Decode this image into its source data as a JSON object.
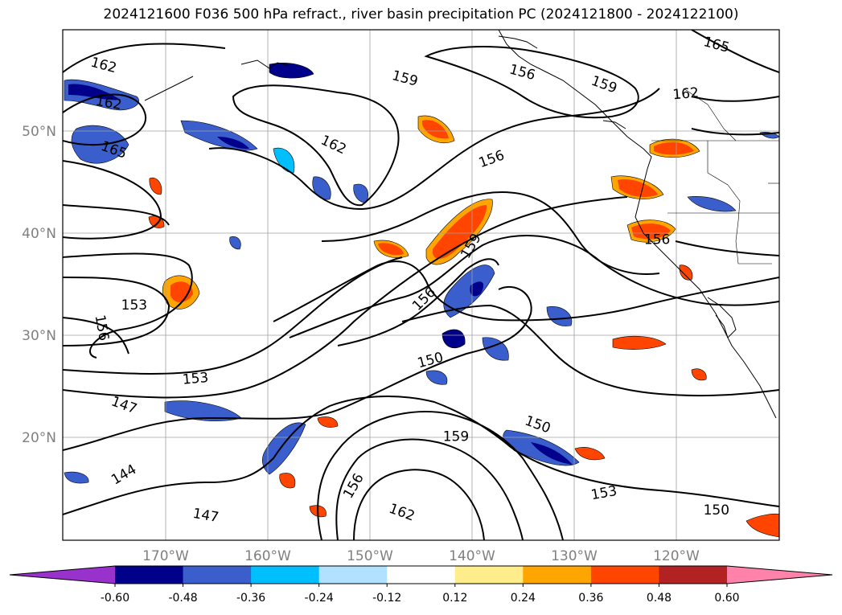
{
  "title": "2024121600 F036 500 hPa refract., river basin precipitation PC (2024121800 - 2024122100)",
  "map": {
    "lon_labels": [
      "170°W",
      "160°W",
      "150°W",
      "140°W",
      "130°W",
      "120°W"
    ],
    "lat_labels": [
      "50°N",
      "40°N",
      "30°N",
      "20°N"
    ],
    "contour_labels": [
      {
        "text": "162",
        "lon": -176,
        "lat": 56.5,
        "rot": 15
      },
      {
        "text": "162",
        "lon": -175.5,
        "lat": 52.8,
        "rot": 10
      },
      {
        "text": "165",
        "lon": -175,
        "lat": 48.2,
        "rot": 20
      },
      {
        "text": "159",
        "lon": -146.5,
        "lat": 55.2,
        "rot": 15
      },
      {
        "text": "156",
        "lon": -135,
        "lat": 55.8,
        "rot": 15
      },
      {
        "text": "159",
        "lon": -127,
        "lat": 54.6,
        "rot": 20
      },
      {
        "text": "165",
        "lon": -116,
        "lat": 58.5,
        "rot": 15
      },
      {
        "text": "162",
        "lon": -119,
        "lat": 53.7,
        "rot": -5
      },
      {
        "text": "162",
        "lon": -153.5,
        "lat": 48.7,
        "rot": 25
      },
      {
        "text": "156",
        "lon": -138,
        "lat": 47.3,
        "rot": -20
      },
      {
        "text": "159",
        "lon": -140,
        "lat": 38.8,
        "rot": -60
      },
      {
        "text": "156",
        "lon": -121.8,
        "lat": 39.4,
        "rot": 0
      },
      {
        "text": "153",
        "lon": -173,
        "lat": 33,
        "rot": 0
      },
      {
        "text": "156",
        "lon": -176.2,
        "lat": 30.8,
        "rot": 80
      },
      {
        "text": "156",
        "lon": -144.6,
        "lat": 33.6,
        "rot": -45
      },
      {
        "text": "150",
        "lon": -144,
        "lat": 27.6,
        "rot": -15
      },
      {
        "text": "153",
        "lon": -167,
        "lat": 25.8,
        "rot": -5
      },
      {
        "text": "147",
        "lon": -174,
        "lat": 23.2,
        "rot": 20
      },
      {
        "text": "150",
        "lon": -133.5,
        "lat": 21.3,
        "rot": 20
      },
      {
        "text": "159",
        "lon": -141.5,
        "lat": 20.1,
        "rot": 0
      },
      {
        "text": "144",
        "lon": -174,
        "lat": 16.4,
        "rot": -30
      },
      {
        "text": "156",
        "lon": -151.5,
        "lat": 15.3,
        "rot": -60
      },
      {
        "text": "162",
        "lon": -146.8,
        "lat": 12.7,
        "rot": 20
      },
      {
        "text": "147",
        "lon": -166,
        "lat": 12.4,
        "rot": 10
      },
      {
        "text": "153",
        "lon": -127,
        "lat": 14.6,
        "rot": -10
      },
      {
        "text": "150",
        "lon": -116,
        "lat": 12.9,
        "rot": 0
      }
    ]
  },
  "colorbar": {
    "ticks": [
      "-0.60",
      "-0.48",
      "-0.36",
      "-0.24",
      "-0.12",
      "0.12",
      "0.24",
      "0.36",
      "0.48",
      "0.60"
    ],
    "colors": [
      "#9932cc",
      "#00008b",
      "#3a5fcd",
      "#00bfff",
      "#b0e2ff",
      "#ffffff",
      "#ffec8b",
      "#ffa500",
      "#ff4500",
      "#b22222",
      "#ff82ab"
    ]
  }
}
